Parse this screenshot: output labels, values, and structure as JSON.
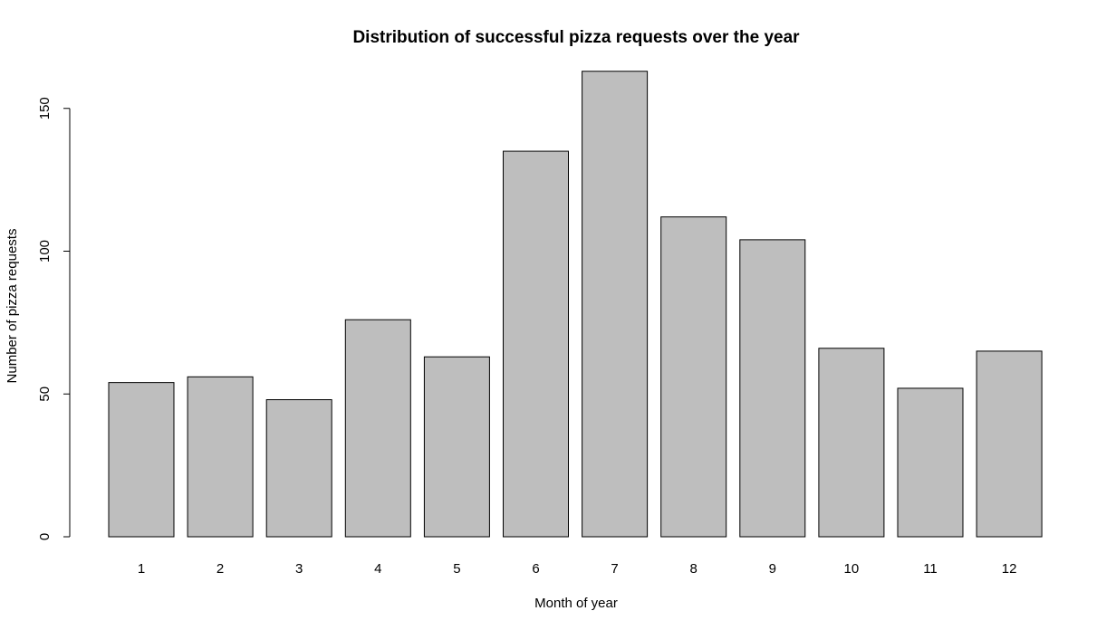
{
  "chart_data": {
    "type": "bar",
    "title": "Distribution of successful pizza requests over the year",
    "xlabel": "Month of year",
    "ylabel": "Number of pizza requests",
    "categories": [
      "1",
      "2",
      "3",
      "4",
      "5",
      "6",
      "7",
      "8",
      "9",
      "10",
      "11",
      "12"
    ],
    "values": [
      54,
      56,
      48,
      76,
      63,
      135,
      163,
      112,
      104,
      66,
      52,
      65
    ],
    "ylim": [
      0,
      163
    ],
    "yticks": [
      0,
      50,
      100,
      150
    ],
    "bar_color": "#bebebe",
    "grid": false,
    "legend": "none"
  }
}
